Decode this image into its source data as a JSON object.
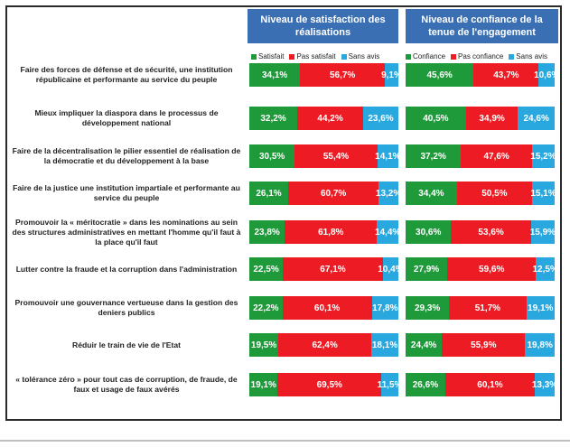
{
  "colors": {
    "green": "#1f9a3a",
    "red": "#ed1c24",
    "blue": "#29a8e0",
    "header": "#3a6fb4"
  },
  "chart_data": [
    {
      "type": "bar",
      "stacked": true,
      "orientation": "horizontal",
      "title": "Niveau de satisfaction des réalisations",
      "series_labels": [
        "Satisfait",
        "Pas satisfait",
        "Sans avis"
      ],
      "categories": [
        "Faire des forces de défense et de sécurité, une institution républicaine et performante au service du peuple",
        "Mieux impliquer la diaspora dans le processus de développement national",
        "Faire de la décentralisation le pilier essentiel de réalisation de la démocratie et du développement à la base",
        "Faire de la justice une institution impartiale et performante au service du peuple",
        "Promouvoir la « méritocratie » dans les nominations au sein des structures administratives en mettant l'homme qu'il faut à la place qu'il faut",
        "Lutter contre la fraude et la corruption dans l'administration",
        "Promouvoir une gouvernance vertueuse dans la gestion des deniers publics",
        "Réduir le train de vie de l'Etat",
        "« tolérance zéro » pour tout cas de corruption, de fraude, de faux et usage de faux avérés"
      ],
      "values": [
        [
          34.1,
          56.7,
          9.1
        ],
        [
          32.2,
          44.2,
          23.6
        ],
        [
          30.5,
          55.4,
          14.1
        ],
        [
          26.1,
          60.7,
          13.2
        ],
        [
          23.8,
          61.8,
          14.4
        ],
        [
          22.5,
          67.1,
          10.4
        ],
        [
          22.2,
          60.1,
          17.8
        ],
        [
          19.5,
          62.4,
          18.1
        ],
        [
          19.1,
          69.5,
          11.5
        ]
      ],
      "value_labels": [
        [
          "34,1%",
          "56,7%",
          "9,1%"
        ],
        [
          "32,2%",
          "44,2%",
          "23,6%"
        ],
        [
          "30,5%",
          "55,4%",
          "14,1%"
        ],
        [
          "26,1%",
          "60,7%",
          "13,2%"
        ],
        [
          "23,8%",
          "61,8%",
          "14,4%"
        ],
        [
          "22,5%",
          "67,1%",
          "10,4%"
        ],
        [
          "22,2%",
          "60,1%",
          "17,8%"
        ],
        [
          "19,5%",
          "62,4%",
          "18,1%"
        ],
        [
          "19,1%",
          "69,5%",
          "11,5%"
        ]
      ]
    },
    {
      "type": "bar",
      "stacked": true,
      "orientation": "horizontal",
      "title": "Niveau de confiance de la tenue de l'engagement",
      "series_labels": [
        "Confiance",
        "Pas confiance",
        "Sans avis"
      ],
      "values": [
        [
          45.6,
          43.7,
          10.6
        ],
        [
          40.5,
          34.9,
          24.6
        ],
        [
          37.2,
          47.6,
          15.2
        ],
        [
          34.4,
          50.5,
          15.1
        ],
        [
          30.6,
          53.6,
          15.9
        ],
        [
          27.9,
          59.6,
          12.5
        ],
        [
          29.3,
          51.7,
          19.1
        ],
        [
          24.4,
          55.9,
          19.8
        ],
        [
          26.6,
          60.1,
          13.3
        ]
      ],
      "value_labels": [
        [
          "45,6%",
          "43,7%",
          "10,6%"
        ],
        [
          "40,5%",
          "34,9%",
          "24,6%"
        ],
        [
          "37,2%",
          "47,6%",
          "15,2%"
        ],
        [
          "34,4%",
          "50,5%",
          "15,1%"
        ],
        [
          "30,6%",
          "53,6%",
          "15,9%"
        ],
        [
          "27,9%",
          "59,6%",
          "12,5%"
        ],
        [
          "29,3%",
          "51,7%",
          "19,1%"
        ],
        [
          "24,4%",
          "55,9%",
          "19,8%"
        ],
        [
          "26,6%",
          "60,1%",
          "13,3%"
        ]
      ]
    }
  ]
}
